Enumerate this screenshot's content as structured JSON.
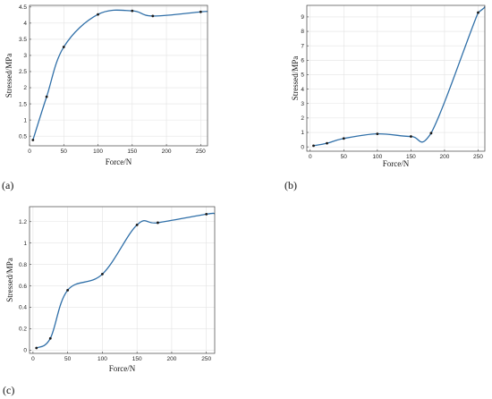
{
  "colors": {
    "curve": "#2f6fa8",
    "point": "#1a1a1a",
    "grid": "#e3e3e3"
  },
  "chart_data": [
    {
      "type": "scatter",
      "panel_label": "(a)",
      "xlabel": "Force/N",
      "ylabel": "Stressed/MPa",
      "xlim": [
        0,
        260
      ],
      "ylim": [
        0.2,
        4.55
      ],
      "xticks": [
        0,
        50,
        100,
        150,
        200,
        250
      ],
      "yticks": [
        0.5,
        1,
        1.5,
        2,
        2.5,
        3,
        3.5,
        4,
        4.5
      ],
      "x": [
        5,
        25,
        50,
        100,
        150,
        180,
        250
      ],
      "y": [
        0.38,
        1.72,
        3.26,
        4.27,
        4.38,
        4.22,
        4.35
      ],
      "fit_curve": true,
      "grid": true
    },
    {
      "type": "scatter",
      "panel_label": "(b)",
      "xlabel": "Force/N",
      "ylabel": "Stressed/MPa",
      "xlim": [
        -5,
        260
      ],
      "ylim": [
        -0.3,
        9.8
      ],
      "xticks": [
        0,
        50,
        100,
        150,
        200,
        250
      ],
      "yticks": [
        0,
        1,
        2,
        3,
        4,
        5,
        6,
        7,
        8,
        9
      ],
      "x": [
        5,
        25,
        50,
        100,
        150,
        180,
        250
      ],
      "y": [
        0.08,
        0.25,
        0.58,
        0.9,
        0.72,
        0.95,
        9.3
      ],
      "fit_curve": true,
      "grid": true
    },
    {
      "type": "scatter",
      "panel_label": "(c)",
      "xlabel": "Force/N",
      "ylabel": "Stressed/MPa",
      "xlim": [
        -5,
        262
      ],
      "ylim": [
        -0.03,
        1.34
      ],
      "xticks": [
        0,
        50,
        100,
        150,
        200,
        250
      ],
      "yticks": [
        0,
        0.2,
        0.4,
        0.6,
        0.8,
        1,
        1.2
      ],
      "x": [
        5,
        25,
        50,
        100,
        150,
        180,
        250
      ],
      "y": [
        0.02,
        0.11,
        0.56,
        0.71,
        1.17,
        1.19,
        1.27
      ],
      "fit_curve": true,
      "grid": true
    }
  ]
}
